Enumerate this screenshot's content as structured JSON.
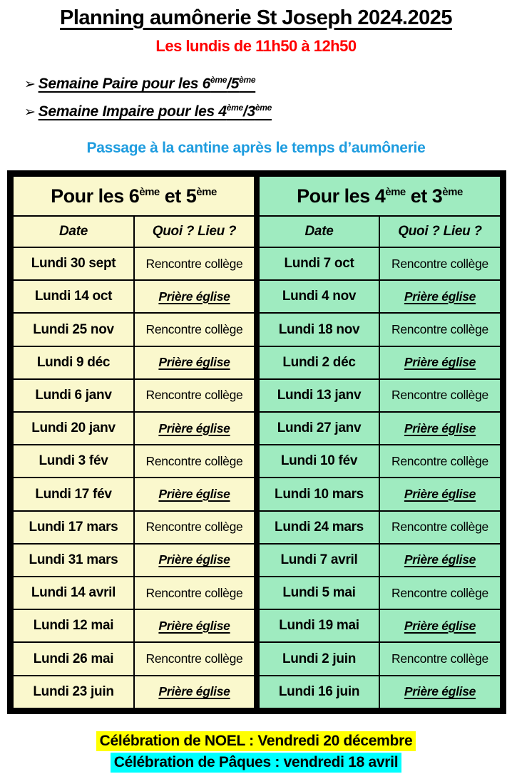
{
  "page": {
    "title": "Planning aumônerie St Joseph 2024.2025",
    "subtitle": "Les lundis de 11h50 à 12h50",
    "bullets": [
      {
        "arrow": "➢",
        "lead": "Semaine Paire pour les 6",
        "sup1": "ème",
        "mid": "/5",
        "sup2": "ème"
      },
      {
        "arrow": "➢",
        "lead": "Semaine Impaire pour les 4",
        "sup1": "ème",
        "mid": "/3",
        "sup2": "ème"
      }
    ],
    "cantine_note": "Passage à la cantine après le temps d’aumônerie"
  },
  "left_table": {
    "title": {
      "pre": "Pour les 6",
      "sup1": "ème",
      "mid": " et 5",
      "sup2": "ème"
    },
    "col_date": "Date",
    "col_quoi": "Quoi ? Lieu ?",
    "rows": [
      {
        "date": "Lundi 30 sept",
        "activity": "Rencontre collège",
        "style": "rencontre"
      },
      {
        "date": "Lundi 14 oct",
        "activity": "Prière église",
        "style": "priere"
      },
      {
        "date": "Lundi 25 nov",
        "activity": "Rencontre collège",
        "style": "rencontre"
      },
      {
        "date": "Lundi 9 déc",
        "activity": "Prière église",
        "style": "priere"
      },
      {
        "date": "Lundi 6 janv",
        "activity": "Rencontre collège",
        "style": "rencontre"
      },
      {
        "date": "Lundi 20 janv",
        "activity": "Prière église",
        "style": "priere"
      },
      {
        "date": "Lundi 3 fév",
        "activity": "Rencontre collège",
        "style": "rencontre"
      },
      {
        "date": "Lundi 17 fév",
        "activity": "Prière église",
        "style": "priere"
      },
      {
        "date": "Lundi 17 mars",
        "activity": "Rencontre collège",
        "style": "rencontre"
      },
      {
        "date": "Lundi 31 mars",
        "activity": "Prière église",
        "style": "priere"
      },
      {
        "date": "Lundi 14 avril",
        "activity": "Rencontre collège",
        "style": "rencontre"
      },
      {
        "date": "Lundi 12 mai",
        "activity": "Prière église",
        "style": "priere"
      },
      {
        "date": "Lundi 26 mai",
        "activity": "Rencontre collège",
        "style": "rencontre"
      },
      {
        "date": "Lundi 23 juin",
        "activity": "Prière église",
        "style": "priere"
      }
    ]
  },
  "right_table": {
    "title": {
      "pre": "Pour les 4",
      "sup1": "ème",
      "mid": " et 3",
      "sup2": "ème"
    },
    "col_date": "Date",
    "col_quoi": "Quoi ? Lieu ?",
    "rows": [
      {
        "date": "Lundi 7 oct",
        "activity": "Rencontre collège",
        "style": "rencontre"
      },
      {
        "date": "Lundi 4 nov",
        "activity": "Prière église",
        "style": "priere"
      },
      {
        "date": "Lundi 18 nov",
        "activity": "Rencontre collège",
        "style": "rencontre"
      },
      {
        "date": "Lundi 2 déc",
        "activity": "Prière église",
        "style": "priere"
      },
      {
        "date": "Lundi 13 janv",
        "activity": "Rencontre collège",
        "style": "rencontre"
      },
      {
        "date": "Lundi 27 janv",
        "activity": "Prière église",
        "style": "priere"
      },
      {
        "date": "Lundi 10 fév",
        "activity": "Rencontre collège",
        "style": "rencontre"
      },
      {
        "date": "Lundi 10 mars",
        "activity": "Prière église",
        "style": "priere"
      },
      {
        "date": "Lundi 24 mars",
        "activity": "Rencontre collège",
        "style": "rencontre"
      },
      {
        "date": "Lundi 7 avril",
        "activity": "Prière église",
        "style": "priere"
      },
      {
        "date": "Lundi 5 mai",
        "activity": "Rencontre collège",
        "style": "rencontre"
      },
      {
        "date": "Lundi 19 mai",
        "activity": "Prière église",
        "style": "priere"
      },
      {
        "date": "Lundi 2 juin",
        "activity": "Rencontre collège",
        "style": "rencontre"
      },
      {
        "date": "Lundi 16 juin",
        "activity": "Prière église",
        "style": "priere"
      }
    ]
  },
  "footer": {
    "noel": "Célébration de NOEL : Vendredi 20 décembre",
    "paques": "Célébration de Pâques : vendredi 18 avril"
  },
  "colors": {
    "left_bg": "#FAF8CD",
    "right_bg": "#9FEBC0",
    "subtitle_red": "#FF0000",
    "note_blue": "#1E9CDF",
    "noel_hl": "#FFFF00",
    "paques_hl": "#00FFFF",
    "ink": "#000000"
  }
}
